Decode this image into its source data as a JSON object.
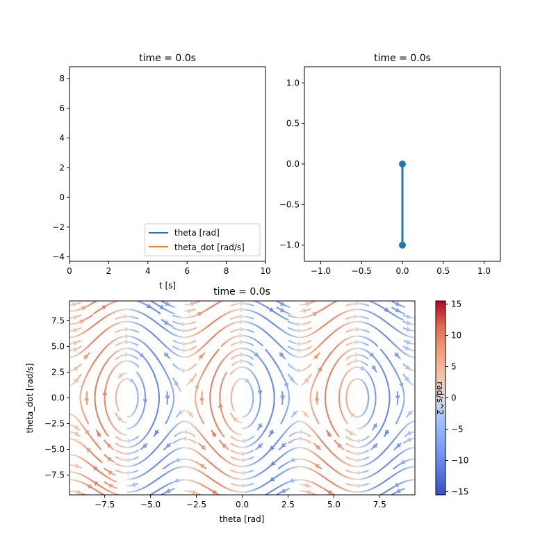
{
  "chart_data": [
    {
      "type": "line",
      "title": "time = 0.0s",
      "xlabel": "t [s]",
      "ylabel": "",
      "xlim": [
        0,
        10
      ],
      "ylim": [
        -4.3,
        8.8
      ],
      "xticks": [
        "0",
        "2",
        "4",
        "6",
        "8",
        "10"
      ],
      "yticks": [
        "−4",
        "−2",
        "0",
        "2",
        "4",
        "6",
        "8"
      ],
      "series": [
        {
          "name": "theta [rad]",
          "color": "#1f77b4",
          "x": [],
          "y": []
        },
        {
          "name": "theta_dot [rad/s]",
          "color": "#ff7f0e",
          "x": [],
          "y": []
        }
      ],
      "legend": "lower-right",
      "grid": false
    },
    {
      "type": "line",
      "title": "time = 0.0s",
      "xlabel": "",
      "ylabel": "",
      "xlim": [
        -1.2,
        1.2
      ],
      "ylim": [
        -1.2,
        1.2
      ],
      "xticks": [
        "−1.0",
        "−0.5",
        "0.0",
        "0.5",
        "1.0"
      ],
      "yticks": [
        "−1.0",
        "−0.5",
        "0.0",
        "0.5",
        "1.0"
      ],
      "series": [
        {
          "color": "#1f77b4",
          "x": [
            0.0,
            0.0
          ],
          "y": [
            0.0,
            -1.0
          ],
          "markers": true
        }
      ],
      "grid": false
    },
    {
      "type": "streamplot",
      "title": "time = 0.0s",
      "xlabel": "theta [rad]",
      "ylabel": "theta_dot [rad/s]",
      "xlim": [
        -9.42,
        9.42
      ],
      "ylim": [
        -9.42,
        9.42
      ],
      "xticks": [
        "−7.5",
        "−5.0",
        "−2.5",
        "0.0",
        "2.5",
        "5.0",
        "7.5"
      ],
      "yticks": [
        "−7.5",
        "−5.0",
        "−2.5",
        "0.0",
        "2.5",
        "5.0",
        "7.5"
      ],
      "vector_field": "d(theta)/dt = theta_dot, d(theta_dot)/dt = -9.81*sin(theta)",
      "colormap": "coolwarm",
      "colorbar": {
        "label": "rad/s^2",
        "range": [
          -15.5,
          15.5
        ],
        "ticks": [
          "15",
          "10",
          "5",
          "0",
          "−5",
          "−10",
          "−15"
        ]
      }
    }
  ]
}
